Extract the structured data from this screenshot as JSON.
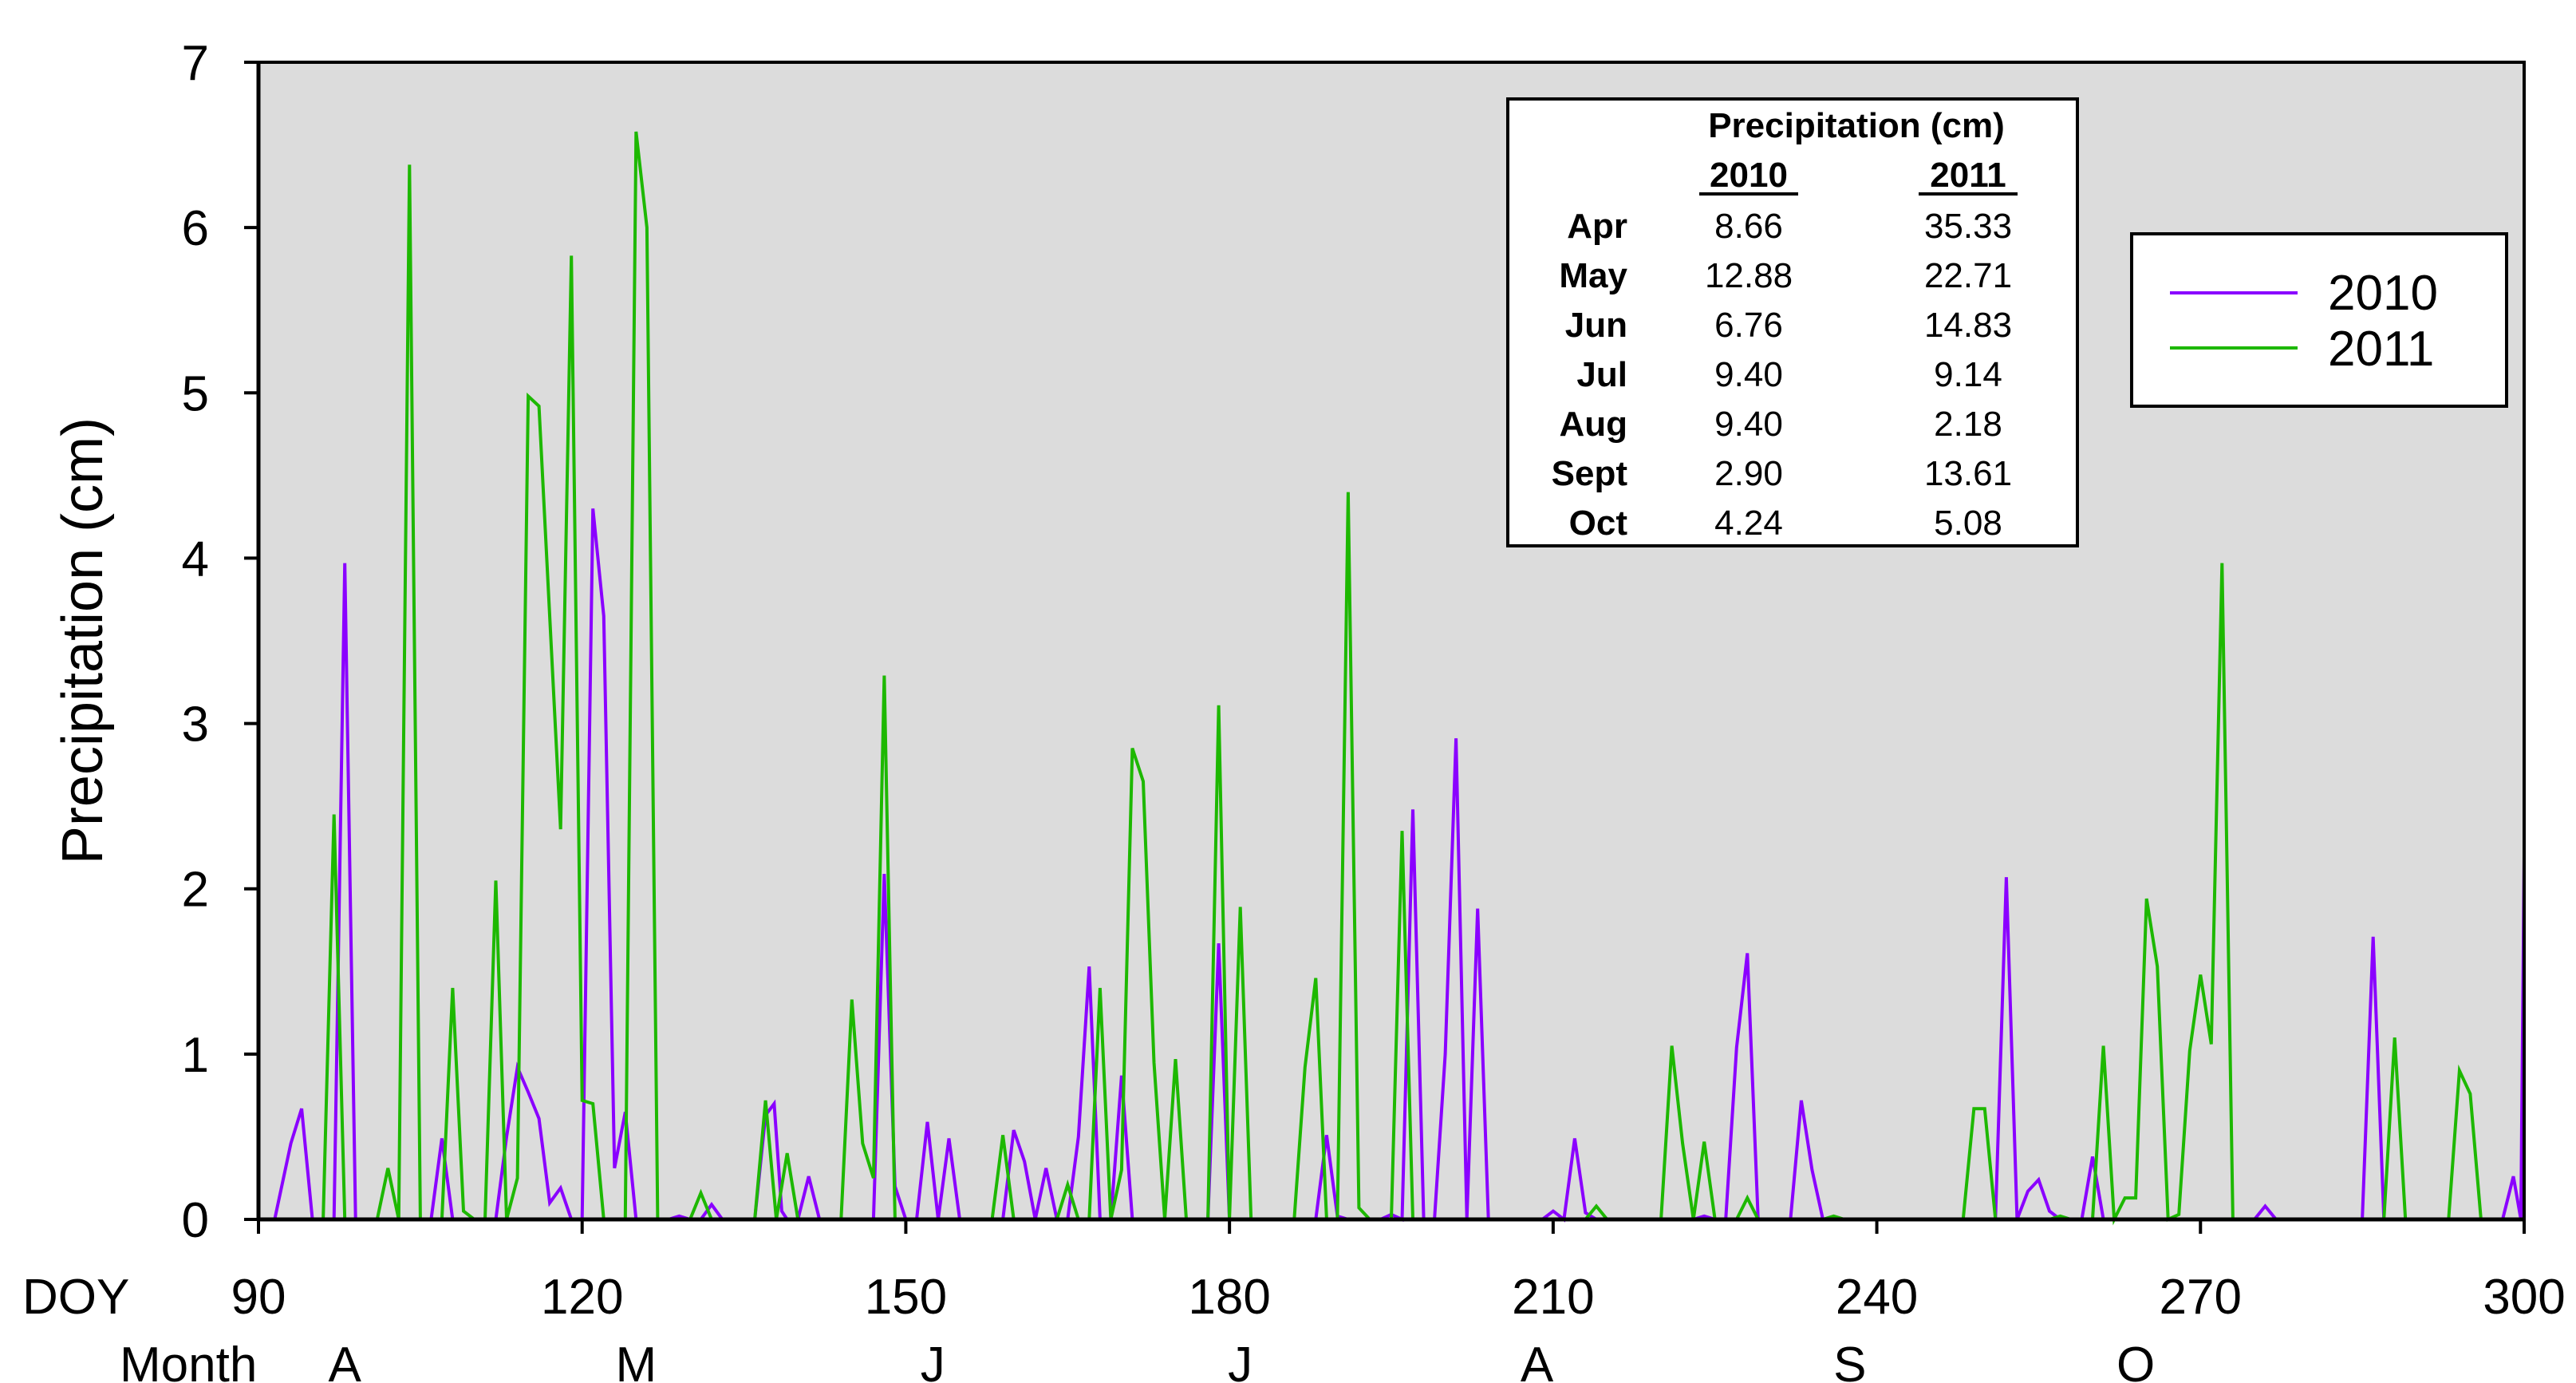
{
  "chart_data": {
    "type": "line",
    "ylabel": "Precipitation (cm)",
    "xlabel_prefix": "DOY",
    "month_prefix": "Month",
    "xlim": [
      90,
      300
    ],
    "ylim": [
      0,
      7
    ],
    "x_ticks": [
      90,
      120,
      150,
      180,
      210,
      240,
      270,
      300
    ],
    "y_ticks": [
      0,
      1,
      2,
      3,
      4,
      5,
      6,
      7
    ],
    "months": [
      {
        "label": "A",
        "doy": 98
      },
      {
        "label": "M",
        "doy": 125
      },
      {
        "label": "J",
        "doy": 152.5
      },
      {
        "label": "J",
        "doy": 181
      },
      {
        "label": "A",
        "doy": 208.5
      },
      {
        "label": "S",
        "doy": 237.5
      },
      {
        "label": "O",
        "doy": 264
      }
    ],
    "plot_background": "#dcdcdc",
    "grid": false,
    "legend_position": "top-right",
    "series": [
      {
        "name": "2010",
        "color": "#8a00ff",
        "points": [
          [
            91.5,
            0
          ],
          [
            93,
            0.46
          ],
          [
            94,
            0.67
          ],
          [
            95,
            0
          ],
          [
            96,
            0
          ],
          [
            97,
            0
          ],
          [
            98,
            3.97
          ],
          [
            99,
            0
          ],
          [
            100,
            0
          ],
          [
            105,
            0
          ],
          [
            106,
            0
          ],
          [
            107,
            0.49
          ],
          [
            108,
            0
          ],
          [
            110,
            0
          ],
          [
            112,
            0
          ],
          [
            113,
            0.5
          ],
          [
            114,
            0.92
          ],
          [
            115,
            0.77
          ],
          [
            116,
            0.61
          ],
          [
            117,
            0.1
          ],
          [
            118,
            0.19
          ],
          [
            119,
            0
          ],
          [
            120,
            0
          ],
          [
            121,
            4.3
          ],
          [
            122,
            3.65
          ],
          [
            123,
            0.31
          ],
          [
            124,
            0.65
          ],
          [
            125,
            0
          ],
          [
            126,
            0
          ],
          [
            128,
            0
          ],
          [
            129,
            0.02
          ],
          [
            130,
            0
          ],
          [
            131,
            0
          ],
          [
            132,
            0.09
          ],
          [
            133,
            0
          ],
          [
            136,
            0
          ],
          [
            137,
            0.63
          ],
          [
            137.8,
            0.7
          ],
          [
            138.5,
            0.05
          ],
          [
            139,
            0
          ],
          [
            140,
            0
          ],
          [
            141,
            0.26
          ],
          [
            142,
            0
          ],
          [
            147,
            0
          ],
          [
            148,
            2.09
          ],
          [
            149,
            0.2
          ],
          [
            150,
            0
          ],
          [
            151,
            0
          ],
          [
            152,
            0.59
          ],
          [
            153,
            0
          ],
          [
            154,
            0.49
          ],
          [
            155,
            0
          ],
          [
            159,
            0
          ],
          [
            160,
            0.54
          ],
          [
            161,
            0.35
          ],
          [
            162,
            0
          ],
          [
            163,
            0.31
          ],
          [
            164,
            0
          ],
          [
            165,
            0
          ],
          [
            166,
            0.5
          ],
          [
            167,
            1.53
          ],
          [
            168,
            0
          ],
          [
            169,
            0
          ],
          [
            170,
            0.87
          ],
          [
            171,
            0
          ],
          [
            178,
            0
          ],
          [
            179,
            1.67
          ],
          [
            180,
            0
          ],
          [
            187,
            0
          ],
          [
            188,
            0
          ],
          [
            189,
            0.51
          ],
          [
            190,
            0.02
          ],
          [
            191,
            0
          ],
          [
            194,
            0
          ],
          [
            195,
            0.03
          ],
          [
            196,
            0
          ],
          [
            197,
            2.48
          ],
          [
            198,
            0
          ],
          [
            199,
            0
          ],
          [
            200,
            1.0
          ],
          [
            201,
            2.91
          ],
          [
            202,
            0
          ],
          [
            203,
            1.88
          ],
          [
            204,
            0
          ],
          [
            209,
            0
          ],
          [
            210,
            0.05
          ],
          [
            211,
            0
          ],
          [
            212,
            0.49
          ],
          [
            213,
            0.04
          ],
          [
            214,
            0
          ],
          [
            223,
            0
          ],
          [
            224,
            0.02
          ],
          [
            225,
            0
          ],
          [
            226,
            0
          ],
          [
            227,
            1.04
          ],
          [
            228,
            1.61
          ],
          [
            229,
            0
          ],
          [
            232,
            0
          ],
          [
            233,
            0.72
          ],
          [
            234,
            0.3
          ],
          [
            235,
            0
          ],
          [
            250,
            0
          ],
          [
            251,
            0
          ],
          [
            252,
            2.07
          ],
          [
            253,
            0
          ],
          [
            254,
            0.17
          ],
          [
            255,
            0.24
          ],
          [
            256,
            0.05
          ],
          [
            257,
            0
          ],
          [
            259,
            0
          ],
          [
            260,
            0.38
          ],
          [
            261,
            0
          ],
          [
            275,
            0
          ],
          [
            276,
            0.08
          ],
          [
            277,
            0
          ],
          [
            285,
            0
          ],
          [
            286,
            1.71
          ],
          [
            287,
            0
          ],
          [
            298,
            0
          ],
          [
            299,
            0.26
          ],
          [
            299.7,
            0
          ],
          [
            300,
            2.2
          ]
        ]
      },
      {
        "name": "2011",
        "color": "#1db800",
        "points": [
          [
            91,
            0
          ],
          [
            96,
            0
          ],
          [
            97,
            2.45
          ],
          [
            98,
            0
          ],
          [
            100,
            0
          ],
          [
            101,
            0
          ],
          [
            102,
            0.31
          ],
          [
            103,
            0
          ],
          [
            104,
            6.38
          ],
          [
            105,
            0
          ],
          [
            107,
            0
          ],
          [
            108,
            1.4
          ],
          [
            109,
            0.05
          ],
          [
            110,
            0
          ],
          [
            111,
            0
          ],
          [
            112,
            2.05
          ],
          [
            113,
            0
          ],
          [
            114,
            0.25
          ],
          [
            115,
            4.98
          ],
          [
            116,
            4.92
          ],
          [
            118,
            2.36
          ],
          [
            119,
            5.83
          ],
          [
            120,
            0.72
          ],
          [
            121,
            0.7
          ],
          [
            122,
            0
          ],
          [
            124,
            0
          ],
          [
            125,
            6.58
          ],
          [
            126,
            6.0
          ],
          [
            127,
            0
          ],
          [
            130,
            0
          ],
          [
            131,
            0.16
          ],
          [
            132,
            0
          ],
          [
            136,
            0
          ],
          [
            137,
            0.72
          ],
          [
            138,
            0
          ],
          [
            139,
            0.4
          ],
          [
            140,
            0
          ],
          [
            144,
            0
          ],
          [
            145,
            1.33
          ],
          [
            146,
            0.46
          ],
          [
            147,
            0.25
          ],
          [
            148,
            3.29
          ],
          [
            149,
            0
          ],
          [
            151,
            0
          ],
          [
            158,
            0
          ],
          [
            159,
            0.51
          ],
          [
            160,
            0
          ],
          [
            164,
            0
          ],
          [
            165,
            0.21
          ],
          [
            166,
            0
          ],
          [
            167,
            0
          ],
          [
            168,
            1.4
          ],
          [
            169,
            0
          ],
          [
            170,
            0.3
          ],
          [
            171,
            2.85
          ],
          [
            172,
            2.65
          ],
          [
            173,
            0.95
          ],
          [
            174,
            0
          ],
          [
            175,
            0.97
          ],
          [
            176,
            0
          ],
          [
            178,
            0
          ],
          [
            179,
            3.11
          ],
          [
            180,
            0
          ],
          [
            181,
            1.89
          ],
          [
            182,
            0
          ],
          [
            186,
            0
          ],
          [
            187,
            0.92
          ],
          [
            188,
            1.46
          ],
          [
            189,
            0
          ],
          [
            190,
            0
          ],
          [
            191,
            4.4
          ],
          [
            192,
            0.07
          ],
          [
            193,
            0
          ],
          [
            195,
            0
          ],
          [
            196,
            2.35
          ],
          [
            197,
            0
          ],
          [
            213,
            0
          ],
          [
            214,
            0.08
          ],
          [
            215,
            0
          ],
          [
            220,
            0
          ],
          [
            221,
            1.05
          ],
          [
            222,
            0.46
          ],
          [
            223,
            0
          ],
          [
            224,
            0.47
          ],
          [
            225,
            0
          ],
          [
            227,
            0
          ],
          [
            228,
            0.13
          ],
          [
            229,
            0
          ],
          [
            235,
            0
          ],
          [
            236,
            0.02
          ],
          [
            237,
            0
          ],
          [
            248,
            0
          ],
          [
            249,
            0.67
          ],
          [
            250,
            0.67
          ],
          [
            251,
            0
          ],
          [
            256,
            0
          ],
          [
            257,
            0.02
          ],
          [
            258,
            0
          ],
          [
            260,
            0
          ],
          [
            261,
            1.05
          ],
          [
            262,
            0
          ],
          [
            263,
            0.13
          ],
          [
            264,
            0.13
          ],
          [
            265,
            1.94
          ],
          [
            266,
            1.53
          ],
          [
            267,
            0
          ],
          [
            268,
            0.03
          ],
          [
            269,
            1.02
          ],
          [
            270,
            1.48
          ],
          [
            271,
            1.06
          ],
          [
            272,
            3.97
          ],
          [
            273,
            0
          ],
          [
            287,
            0
          ],
          [
            288,
            1.1
          ],
          [
            289,
            0
          ],
          [
            293,
            0
          ],
          [
            294,
            0.9
          ],
          [
            295,
            0.76
          ],
          [
            296,
            0
          ],
          [
            300,
            0
          ]
        ]
      }
    ],
    "table": {
      "title": "Precipitation (cm)",
      "columns": [
        "2010",
        "2011"
      ],
      "rows": [
        {
          "month": "Apr",
          "v2010": "8.66",
          "v2011": "35.33"
        },
        {
          "month": "May",
          "v2010": "12.88",
          "v2011": "22.71"
        },
        {
          "month": "Jun",
          "v2010": "6.76",
          "v2011": "14.83"
        },
        {
          "month": "Jul",
          "v2010": "9.40",
          "v2011": "9.14"
        },
        {
          "month": "Aug",
          "v2010": "9.40",
          "v2011": "2.18"
        },
        {
          "month": "Sept",
          "v2010": "2.90",
          "v2011": "13.61"
        },
        {
          "month": "Oct",
          "v2010": "4.24",
          "v2011": "5.08"
        }
      ]
    }
  }
}
